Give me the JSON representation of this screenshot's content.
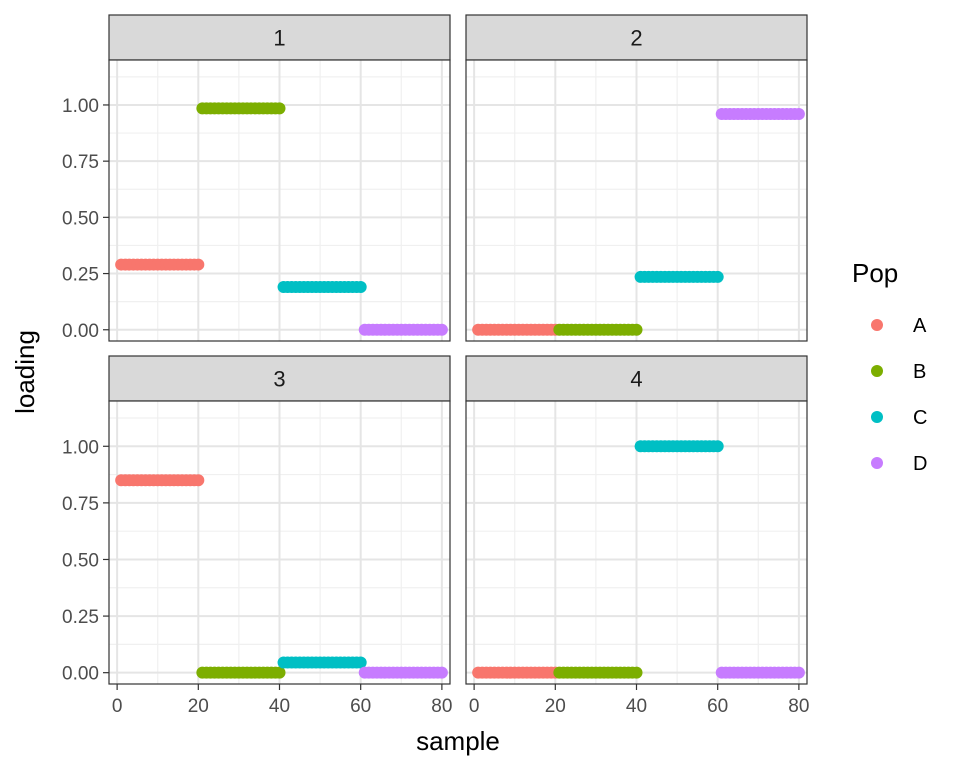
{
  "chart_data": {
    "type": "scatter",
    "xlabel": "sample",
    "ylabel": "loading",
    "xlim": [
      -2,
      82
    ],
    "ylim": [
      -0.05,
      1.2
    ],
    "x_ticks": [
      0,
      20,
      40,
      60,
      80
    ],
    "y_ticks": [
      0.0,
      0.25,
      0.5,
      0.75,
      1.0
    ],
    "y_tick_labels": [
      "0.00",
      "0.25",
      "0.50",
      "0.75",
      "1.00"
    ],
    "x_tick_labels": [
      "0",
      "20",
      "40",
      "60",
      "80"
    ],
    "legend": {
      "title": "Pop",
      "placement": "right",
      "entries": [
        {
          "label": "A",
          "color": "#F8766D"
        },
        {
          "label": "B",
          "color": "#7CAE00"
        },
        {
          "label": "C",
          "color": "#00BFC4"
        },
        {
          "label": "D",
          "color": "#C77CFF"
        }
      ]
    },
    "grid": true,
    "samples_per_group": 20,
    "x_ranges": {
      "A": [
        1,
        20
      ],
      "B": [
        21,
        40
      ],
      "C": [
        41,
        60
      ],
      "D": [
        61,
        80
      ]
    },
    "facets": [
      {
        "label": "1",
        "values": {
          "A": 0.29,
          "B": 0.985,
          "C": 0.19,
          "D": 0.0
        }
      },
      {
        "label": "2",
        "values": {
          "A": 0.0,
          "B": 0.0,
          "C": 0.235,
          "D": 0.96
        }
      },
      {
        "label": "3",
        "values": {
          "A": 0.85,
          "B": 0.0,
          "C": 0.045,
          "D": 0.0
        }
      },
      {
        "label": "4",
        "values": {
          "A": 0.0,
          "B": 0.0,
          "C": 1.0,
          "D": 0.0
        }
      }
    ]
  }
}
